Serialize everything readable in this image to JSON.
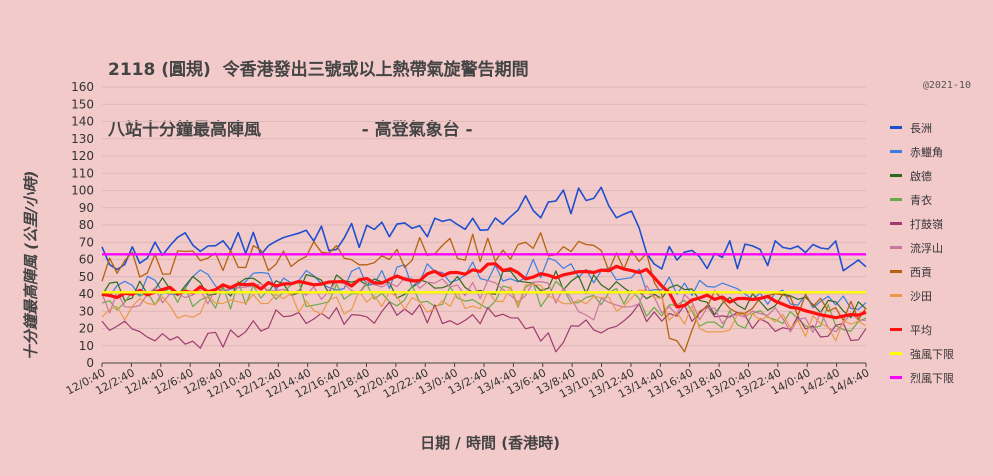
{
  "title_line1": "2118 (圓規)  令香港發出三號或以上熱帶氣旋警告期間",
  "title_line2": "八站十分鐘最高陣風                 - 高登氣象台 -",
  "copyright": "@2021-10",
  "chart_data": {
    "type": "line",
    "xlabel": "日期 / 時間 (香港時)",
    "ylabel": "十分鐘最高陣風 (公里/小時)",
    "ylim": [
      0,
      160
    ],
    "yticks": [
      0,
      10,
      20,
      30,
      40,
      50,
      60,
      70,
      80,
      90,
      100,
      110,
      120,
      130,
      140,
      150,
      160
    ],
    "x_ticks": [
      "12/0:40",
      "12/2:40",
      "12/4:40",
      "12/6:40",
      "12/8:40",
      "12/10:40",
      "12/12:40",
      "12/14:40",
      "12/16:40",
      "12/18:40",
      "12/20:40",
      "12/22:40",
      "13/0:40",
      "13/2:40",
      "13/4:40",
      "13/6:40",
      "13/8:40",
      "13/10:40",
      "13/12:40",
      "13/14:40",
      "13/16:40",
      "13/18:40",
      "13/20:40",
      "13/22:40",
      "14/0:40",
      "14/2:40",
      "14/4:40"
    ],
    "grid": true,
    "legend_position": "right",
    "series": [
      {
        "name": "長洲",
        "color": "#1f4fcf",
        "width": 1.6,
        "profile": [
          [
            0,
            60
          ],
          [
            12,
            68
          ],
          [
            24,
            72
          ],
          [
            36,
            75
          ],
          [
            48,
            78
          ],
          [
            56,
            90
          ],
          [
            60,
            90
          ],
          [
            64,
            100
          ],
          [
            68,
            92
          ],
          [
            72,
            72
          ],
          [
            74,
            58
          ],
          [
            78,
            62
          ],
          [
            84,
            62
          ],
          [
            90,
            65
          ],
          [
            96,
            65
          ],
          [
            101,
            55
          ]
        ],
        "noise": 9,
        "seed": 11
      },
      {
        "name": "赤鱲角",
        "color": "#3b7fe0",
        "width": 1.2,
        "profile": [
          [
            0,
            45
          ],
          [
            20,
            48
          ],
          [
            40,
            50
          ],
          [
            60,
            55
          ],
          [
            72,
            48
          ],
          [
            80,
            40
          ],
          [
            90,
            38
          ],
          [
            101,
            34
          ]
        ],
        "noise": 7,
        "seed": 22
      },
      {
        "name": "啟德",
        "color": "#2e6a1e",
        "width": 1.2,
        "profile": [
          [
            0,
            42
          ],
          [
            20,
            45
          ],
          [
            40,
            44
          ],
          [
            60,
            48
          ],
          [
            72,
            44
          ],
          [
            80,
            35
          ],
          [
            90,
            33
          ],
          [
            101,
            30
          ]
        ],
        "noise": 7,
        "seed": 33
      },
      {
        "name": "青衣",
        "color": "#6aaa48",
        "width": 1.2,
        "profile": [
          [
            0,
            35
          ],
          [
            20,
            40
          ],
          [
            40,
            38
          ],
          [
            60,
            40
          ],
          [
            72,
            35
          ],
          [
            80,
            28
          ],
          [
            90,
            28
          ],
          [
            101,
            24
          ]
        ],
        "noise": 8,
        "seed": 44
      },
      {
        "name": "打鼓嶺",
        "color": "#9c3d6e",
        "width": 1.2,
        "profile": [
          [
            0,
            22
          ],
          [
            10,
            15
          ],
          [
            16,
            12
          ],
          [
            22,
            25
          ],
          [
            40,
            30
          ],
          [
            56,
            25
          ],
          [
            60,
            12
          ],
          [
            64,
            20
          ],
          [
            72,
            30
          ],
          [
            80,
            28
          ],
          [
            90,
            22
          ],
          [
            101,
            18
          ]
        ],
        "noise": 6,
        "seed": 55
      },
      {
        "name": "流浮山",
        "color": "#c7789f",
        "width": 1.2,
        "profile": [
          [
            0,
            35
          ],
          [
            20,
            40
          ],
          [
            40,
            45
          ],
          [
            60,
            40
          ],
          [
            64,
            30
          ],
          [
            72,
            38
          ],
          [
            80,
            30
          ],
          [
            90,
            25
          ],
          [
            101,
            22
          ]
        ],
        "noise": 7,
        "seed": 66
      },
      {
        "name": "西貢",
        "color": "#b5620f",
        "width": 1.3,
        "profile": [
          [
            0,
            55
          ],
          [
            20,
            62
          ],
          [
            40,
            64
          ],
          [
            60,
            68
          ],
          [
            72,
            55
          ],
          [
            76,
            8
          ],
          [
            80,
            35
          ],
          [
            90,
            35
          ],
          [
            101,
            28
          ]
        ],
        "noise": 9,
        "seed": 77
      },
      {
        "name": "沙田",
        "color": "#e89a4a",
        "width": 1.2,
        "profile": [
          [
            0,
            30
          ],
          [
            20,
            35
          ],
          [
            40,
            35
          ],
          [
            60,
            40
          ],
          [
            72,
            35
          ],
          [
            80,
            24
          ],
          [
            90,
            22
          ],
          [
            101,
            18
          ]
        ],
        "noise": 7,
        "seed": 88
      },
      {
        "name": "平均",
        "color": "#ff1010",
        "width": 3.2,
        "profile": [
          [
            0,
            40
          ],
          [
            12,
            42
          ],
          [
            24,
            45
          ],
          [
            36,
            47
          ],
          [
            46,
            52
          ],
          [
            52,
            57
          ],
          [
            56,
            50
          ],
          [
            62,
            50
          ],
          [
            68,
            57
          ],
          [
            72,
            52
          ],
          [
            76,
            34
          ],
          [
            80,
            38
          ],
          [
            90,
            36
          ],
          [
            96,
            26
          ],
          [
            101,
            28
          ]
        ],
        "noise": 2.5,
        "seed": 99
      },
      {
        "name": "強風下限",
        "color": "#ffff00",
        "width": 2.4,
        "constant": 41
      },
      {
        "name": "烈風下限",
        "color": "#ff00ff",
        "width": 2.4,
        "constant": 63
      }
    ]
  }
}
